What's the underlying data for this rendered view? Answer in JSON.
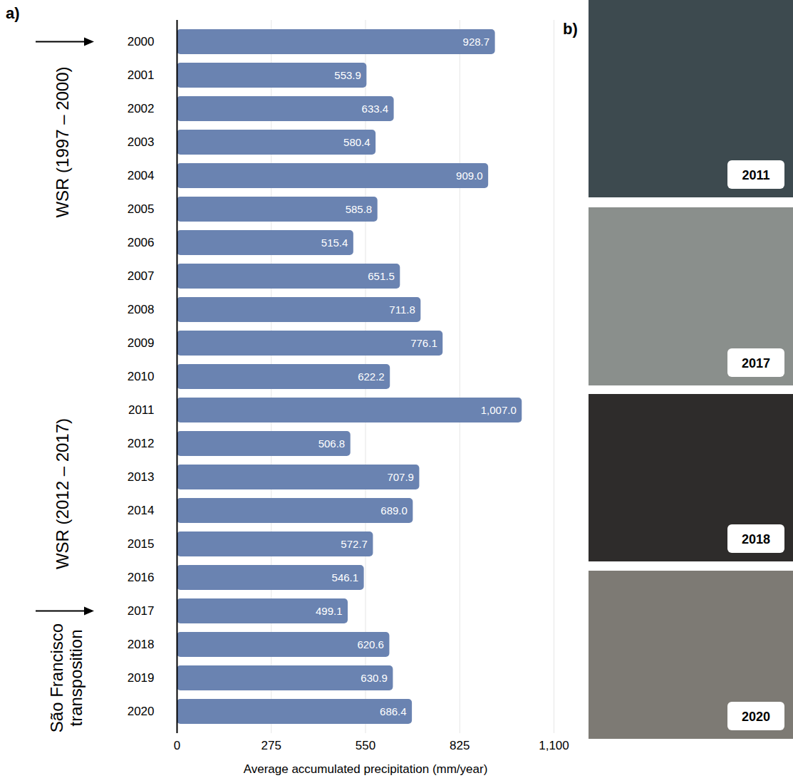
{
  "chart_data": {
    "type": "bar",
    "orientation": "horizontal",
    "categories": [
      "2000",
      "2001",
      "2002",
      "2003",
      "2004",
      "2005",
      "2006",
      "2007",
      "2008",
      "2009",
      "2010",
      "2011",
      "2012",
      "2013",
      "2014",
      "2015",
      "2016",
      "2017",
      "2018",
      "2019",
      "2020"
    ],
    "values": [
      928.7,
      553.9,
      633.4,
      580.4,
      909.0,
      585.8,
      515.4,
      651.5,
      711.8,
      776.1,
      622.2,
      1007.0,
      506.8,
      707.9,
      689.0,
      572.7,
      546.1,
      499.1,
      620.6,
      630.9,
      686.4
    ],
    "value_labels": [
      "928.7",
      "553.9",
      "633.4",
      "580.4",
      "909.0",
      "585.8",
      "515.4",
      "651.5",
      "711.8",
      "776.1",
      "622.2",
      "1,007.0",
      "506.8",
      "707.9",
      "689.0",
      "572.7",
      "546.1",
      "499.1",
      "620.6",
      "630.9",
      "686.4"
    ],
    "data_labels": true,
    "color": "#6a83b1",
    "x_label": "Average accumulated precipitation (mm/year)",
    "xlim": [
      0,
      1100
    ],
    "xticks": [
      0,
      275,
      550,
      825,
      1100
    ],
    "grid": true,
    "annotations": [
      {
        "text": "WSR (1997 – 2000)",
        "arrow": "2000"
      },
      {
        "text": "WSR (2012 – 2017)"
      },
      {
        "text": "São Francisco transposition",
        "arrow": "2017"
      }
    ]
  },
  "panel_labels": [
    "a)",
    "b)"
  ],
  "photos": [
    {
      "caption": "2011"
    },
    {
      "caption": "2017"
    },
    {
      "caption": "2018"
    },
    {
      "caption": "2020"
    }
  ]
}
